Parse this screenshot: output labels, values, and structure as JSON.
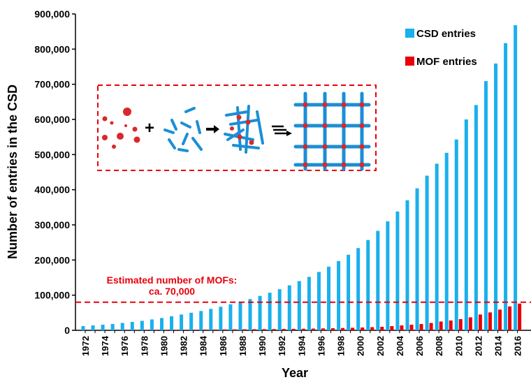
{
  "chart_data": {
    "type": "bar",
    "title": "",
    "xlabel": "Year",
    "ylabel": "Number of entries in the CSD",
    "ylim": [
      0,
      900000
    ],
    "yticks": [
      "0",
      "100,000",
      "200,000",
      "300,000",
      "400,000",
      "500,000",
      "600,000",
      "700,000",
      "800,000",
      "900,000"
    ],
    "xtick_labels": [
      "1972",
      "1974",
      "1976",
      "1978",
      "1980",
      "1982",
      "1984",
      "1986",
      "1988",
      "1990",
      "1992",
      "1994",
      "1996",
      "1998",
      "2000",
      "2002",
      "2004",
      "2006",
      "2008",
      "2010",
      "2012",
      "2014",
      "2016"
    ],
    "categories": [
      "1972",
      "1973",
      "1974",
      "1975",
      "1976",
      "1977",
      "1978",
      "1979",
      "1980",
      "1981",
      "1982",
      "1983",
      "1984",
      "1985",
      "1986",
      "1987",
      "1988",
      "1989",
      "1990",
      "1991",
      "1992",
      "1993",
      "1994",
      "1995",
      "1996",
      "1997",
      "1998",
      "1999",
      "2000",
      "2001",
      "2002",
      "2003",
      "2004",
      "2005",
      "2006",
      "2007",
      "2008",
      "2009",
      "2010",
      "2011",
      "2012",
      "2013",
      "2014",
      "2015",
      "2016"
    ],
    "series": [
      {
        "name": "CSD entries",
        "color": "#1ab0ec",
        "values": [
          12000,
          14000,
          16000,
          18000,
          21000,
          24000,
          27000,
          31000,
          35000,
          40000,
          45000,
          50000,
          55000,
          61000,
          67000,
          74000,
          81000,
          89000,
          98000,
          107000,
          117000,
          128000,
          140000,
          152000,
          166000,
          181000,
          197000,
          215000,
          234000,
          257000,
          283000,
          310000,
          338000,
          370000,
          404000,
          440000,
          474000,
          505000,
          543000,
          600000,
          641000,
          709000,
          759000,
          817000,
          868000
        ]
      },
      {
        "name": "MOF entries",
        "color": "#e8000b",
        "values": [
          0,
          0,
          0,
          0,
          500,
          800,
          1000,
          1200,
          1400,
          1600,
          1800,
          2000,
          2200,
          2400,
          2600,
          2800,
          3000,
          3200,
          3400,
          3600,
          3900,
          4200,
          4600,
          5000,
          5500,
          6000,
          6600,
          7300,
          8100,
          9000,
          10000,
          12000,
          14000,
          16000,
          18000,
          21000,
          25000,
          28000,
          32000,
          37000,
          45000,
          51000,
          59000,
          68000,
          76000
        ]
      }
    ],
    "legend_position": "top-right",
    "grid": false,
    "reference_line": {
      "value": 80000,
      "label_line1": "Estimated number of MOFs:",
      "label_line2": "ca. 70,000",
      "color": "#e8000b"
    }
  }
}
